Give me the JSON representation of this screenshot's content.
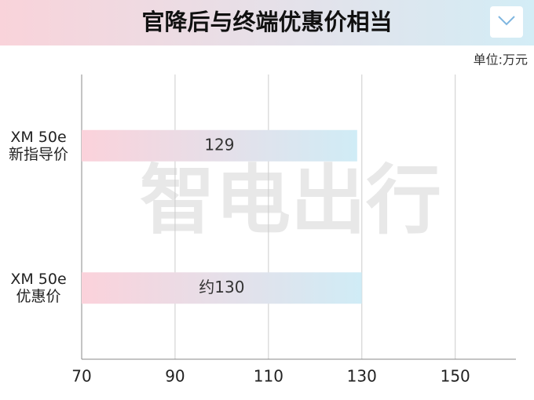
{
  "chart_data": {
    "type": "bar",
    "orientation": "horizontal",
    "title": "官降后与终端优惠价相当",
    "unit": "单位:万元",
    "watermark": "智电出行",
    "categories": [
      "XM 50e\n新指导价",
      "XM 50e\n优惠价"
    ],
    "values": [
      129,
      130
    ],
    "value_labels": [
      "129",
      "约130"
    ],
    "gradient": [
      "#fbd2db",
      "#d0ecf6"
    ],
    "xlim": [
      70,
      163
    ],
    "xticks": [
      70,
      90,
      110,
      130,
      150
    ],
    "grid": true
  }
}
